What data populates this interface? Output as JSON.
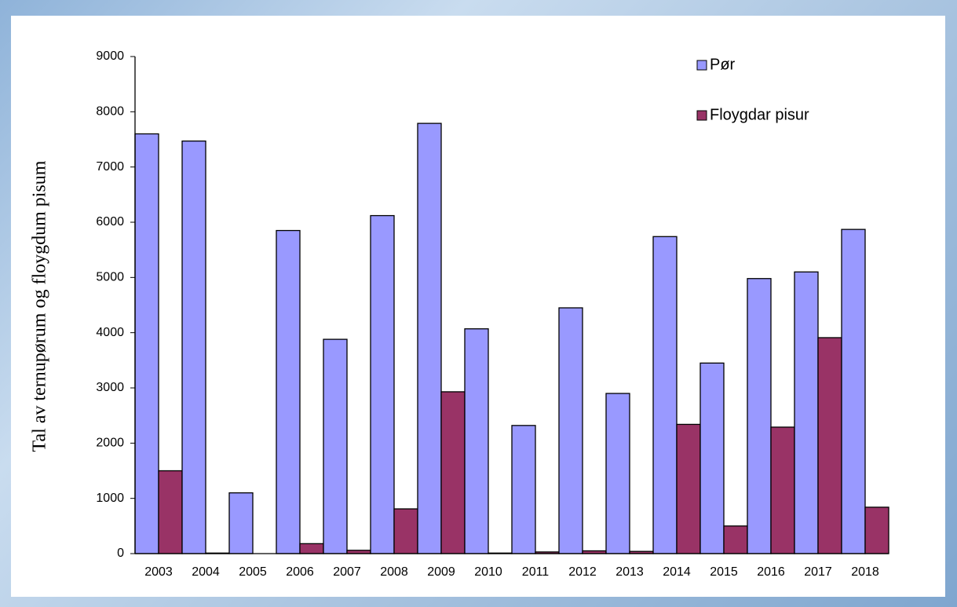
{
  "chart_data": {
    "type": "bar",
    "y_label": "Tal av ternupørum og floygdum pisum",
    "categories": [
      "2003",
      "2004",
      "2005",
      "2006",
      "2007",
      "2008",
      "2009",
      "2010",
      "2011",
      "2012",
      "2013",
      "2014",
      "2015",
      "2016",
      "2017",
      "2018"
    ],
    "series": [
      {
        "name": "Pør",
        "color": "#9999ff",
        "values": [
          7600,
          7470,
          1100,
          5850,
          3880,
          6120,
          7790,
          4070,
          2320,
          4450,
          2900,
          5740,
          3450,
          4980,
          5100,
          5870
        ]
      },
      {
        "name": "Floygdar pisur",
        "color": "#993366",
        "values": [
          1500,
          10,
          0,
          180,
          60,
          810,
          2930,
          10,
          30,
          50,
          40,
          2340,
          500,
          2290,
          3910,
          840
        ]
      }
    ],
    "ylim": [
      0,
      9000
    ],
    "yticks": [
      0,
      1000,
      2000,
      3000,
      4000,
      5000,
      6000,
      7000,
      8000,
      9000
    ],
    "grid": false,
    "legend": "top-right"
  }
}
